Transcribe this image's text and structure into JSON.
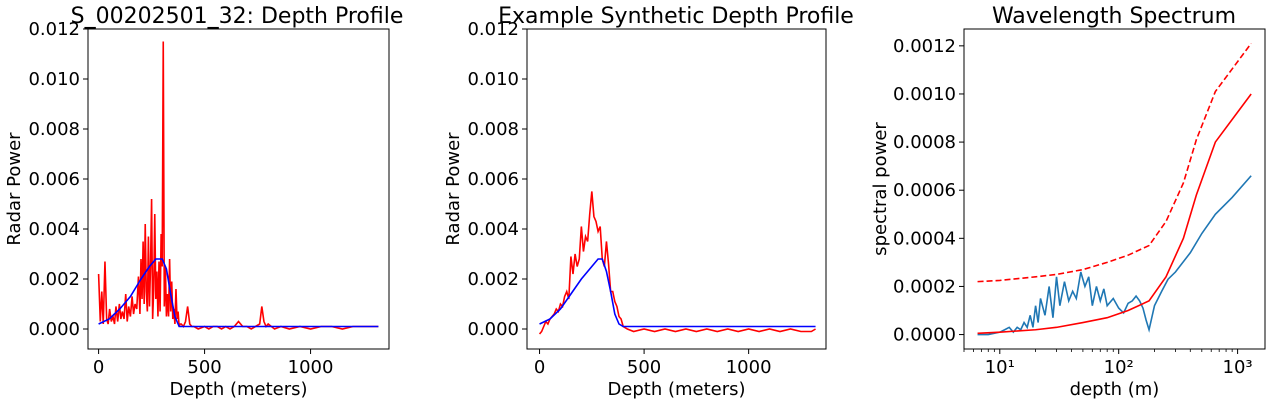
{
  "chart_data": [
    {
      "type": "line",
      "title": "S_00202501_32: Depth Profile",
      "xlabel": "Depth (meters)",
      "ylabel": "Radar Power",
      "xlim": [
        -50,
        1370
      ],
      "ylim": [
        -0.0008,
        0.012
      ],
      "xticks": [
        0,
        500,
        1000
      ],
      "xtick_labels": [
        "0",
        "500",
        "1000"
      ],
      "yticks": [
        0,
        0.002,
        0.004,
        0.006,
        0.008,
        0.01,
        0.012
      ],
      "ytick_labels": [
        "0.000",
        "0.002",
        "0.004",
        "0.006",
        "0.008",
        "0.010",
        "0.012"
      ],
      "grid": false,
      "series": [
        {
          "color": "#ff0000",
          "x": [
            0,
            8,
            15,
            22,
            30,
            38,
            45,
            52,
            60,
            68,
            75,
            82,
            90,
            98,
            105,
            112,
            120,
            128,
            135,
            142,
            150,
            158,
            165,
            172,
            180,
            188,
            195,
            200,
            205,
            210,
            215,
            220,
            225,
            230,
            235,
            240,
            245,
            250,
            255,
            260,
            265,
            270,
            275,
            280,
            285,
            290,
            295,
            300,
            305,
            310,
            315,
            320,
            325,
            330,
            335,
            340,
            345,
            350,
            355,
            360,
            365,
            370,
            375,
            380,
            385,
            390,
            400,
            410,
            420,
            430,
            440,
            450,
            470,
            500,
            520,
            540,
            560,
            580,
            600,
            620,
            640,
            660,
            680,
            700,
            720,
            740,
            760,
            770,
            780,
            790,
            800,
            830,
            860,
            900,
            950,
            1000,
            1050,
            1100,
            1150,
            1200,
            1250,
            1300,
            1320
          ],
          "y": [
            0.0022,
            0.0003,
            0.0015,
            0.0002,
            0.0027,
            0.0004,
            0.0002,
            0.0008,
            0.0003,
            0.0005,
            0.0002,
            0.0009,
            0.0003,
            0.001,
            0.0004,
            0.0007,
            0.0004,
            0.0014,
            0.0003,
            0.0009,
            0.0005,
            0.0013,
            0.0006,
            0.001,
            0.0008,
            0.0021,
            0.0006,
            0.0028,
            0.0012,
            0.0035,
            0.001,
            0.0042,
            0.0015,
            0.0007,
            0.0037,
            0.0009,
            0.0025,
            0.0052,
            0.0004,
            0.0016,
            0.0046,
            0.0012,
            0.0023,
            0.0005,
            0.0027,
            0.0007,
            0.0038,
            0.0025,
            0.0115,
            0.0009,
            0.0025,
            0.0005,
            0.0014,
            0.0005,
            0.0028,
            0.0007,
            0.0019,
            0.0004,
            0.0008,
            0.0002,
            0.0016,
            0.0004,
            0.0007,
            0.0001,
            0.0002,
            0.0002,
            0.0001,
            0.0003,
            0.0009,
            0.0002,
            0.0001,
            0.0001,
            0.0,
            0.0001,
            0.0,
            0.0001,
            0.0001,
            0.0,
            0.0001,
            0.0,
            0.0001,
            0.0003,
            0.0001,
            0.0001,
            0.0,
            0.0001,
            0.0002,
            0.0009,
            0.0003,
            0.0001,
            0.0002,
            0.0,
            0.0001,
            0.0,
            0.0001,
            0.0,
            0.0001,
            0.0001,
            0.0,
            0.0001,
            0.0001,
            0.0001,
            0.0001
          ]
        },
        {
          "color": "#0000ff",
          "x": [
            0,
            50,
            100,
            150,
            200,
            240,
            270,
            300,
            320,
            340,
            360,
            380,
            400,
            450,
            500,
            600,
            700,
            800,
            900,
            1000,
            1100,
            1200,
            1320
          ],
          "y": [
            0.0002,
            0.0004,
            0.0008,
            0.0013,
            0.002,
            0.0025,
            0.0028,
            0.0028,
            0.0024,
            0.0014,
            0.0005,
            0.0001,
            0.0001,
            0.0001,
            0.0001,
            0.0001,
            0.0001,
            0.0001,
            0.0001,
            0.0001,
            0.0001,
            0.0001,
            0.0001
          ]
        }
      ]
    },
    {
      "type": "line",
      "title": "Example Synthetic Depth Profile",
      "xlabel": "Depth (meters)",
      "ylabel": "Radar Power",
      "xlim": [
        -60,
        1370
      ],
      "ylim": [
        -0.0008,
        0.012
      ],
      "xticks": [
        0,
        500,
        1000
      ],
      "xtick_labels": [
        "0",
        "500",
        "1000"
      ],
      "yticks": [
        0,
        0.002,
        0.004,
        0.006,
        0.008,
        0.01,
        0.012
      ],
      "ytick_labels": [
        "0.000",
        "0.002",
        "0.004",
        "0.006",
        "0.008",
        "0.010",
        "0.012"
      ],
      "grid": false,
      "series": [
        {
          "color": "#ff0000",
          "x": [
            0,
            10,
            20,
            30,
            40,
            50,
            60,
            70,
            80,
            90,
            100,
            110,
            120,
            130,
            140,
            150,
            160,
            170,
            180,
            190,
            200,
            210,
            220,
            230,
            240,
            250,
            260,
            270,
            280,
            290,
            300,
            310,
            320,
            330,
            340,
            350,
            360,
            370,
            380,
            390,
            400,
            420,
            450,
            500,
            550,
            600,
            650,
            700,
            750,
            800,
            850,
            900,
            950,
            1000,
            1050,
            1100,
            1150,
            1200,
            1250,
            1300,
            1320
          ],
          "y": [
            -0.0002,
            -0.0001,
            0.0001,
            0.0003,
            0.0002,
            0.0004,
            0.0005,
            0.0006,
            0.0008,
            0.0007,
            0.001,
            0.0009,
            0.0013,
            0.0015,
            0.0012,
            0.0029,
            0.0022,
            0.003,
            0.0025,
            0.0028,
            0.0041,
            0.0031,
            0.0037,
            0.0035,
            0.0046,
            0.0055,
            0.0045,
            0.0043,
            0.0039,
            0.0041,
            0.0028,
            0.0025,
            0.0035,
            0.0026,
            0.0015,
            0.0015,
            0.0011,
            0.0009,
            0.0005,
            0.0004,
            0.0001,
            0.0,
            -0.0001,
            0.0,
            -0.0001,
            0.0,
            -0.0001,
            0.0,
            -0.0001,
            0.0,
            -0.0001,
            0.0,
            -0.0001,
            0.0,
            -0.0001,
            0.0,
            -0.0001,
            0.0,
            -0.0001,
            -0.0001,
            0.0
          ]
        },
        {
          "color": "#0000ff",
          "x": [
            0,
            50,
            100,
            150,
            200,
            250,
            280,
            300,
            320,
            340,
            360,
            380,
            400,
            450,
            500,
            600,
            700,
            800,
            900,
            1000,
            1100,
            1200,
            1320
          ],
          "y": [
            0.0002,
            0.0004,
            0.0008,
            0.0014,
            0.002,
            0.0025,
            0.0028,
            0.0028,
            0.0023,
            0.0015,
            0.0006,
            0.0002,
            0.0001,
            0.0001,
            0.0001,
            0.0001,
            0.0001,
            0.0001,
            0.0001,
            0.0001,
            0.0001,
            0.0001,
            0.0001
          ]
        }
      ]
    },
    {
      "type": "line",
      "title": "Wavelength Spectrum",
      "xlabel": "depth (m)",
      "ylabel": "spectral power",
      "xscale": "log",
      "xlim": [
        5.0,
        1700
      ],
      "ylim": [
        -6e-05,
        0.00127
      ],
      "xticks": [
        10,
        100,
        1000
      ],
      "xtick_labels": [
        "10¹",
        "10²",
        "10³"
      ],
      "yticks": [
        0,
        0.0002,
        0.0004,
        0.0006,
        0.0008,
        0.001,
        0.0012
      ],
      "ytick_labels": [
        "0.0000",
        "0.0002",
        "0.0004",
        "0.0006",
        "0.0008",
        "0.0010",
        "0.0012"
      ],
      "grid": false,
      "series": [
        {
          "color": "#1f77b4",
          "style": "solid",
          "x": [
            6.5,
            8,
            10,
            11,
            12,
            13,
            14,
            15,
            16,
            17,
            18,
            19,
            20,
            21,
            22,
            24,
            26,
            28,
            30,
            32,
            35,
            38,
            41,
            44,
            48,
            52,
            56,
            60,
            65,
            70,
            75,
            80,
            90,
            100,
            110,
            120,
            130,
            140,
            150,
            160,
            170,
            180,
            200,
            230,
            260,
            300,
            400,
            500,
            650,
            900,
            1300
          ],
          "y": [
            0.0,
            0.0,
            1e-05,
            2e-05,
            3e-05,
            1e-05,
            3e-05,
            2e-05,
            5e-05,
            3e-05,
            8e-05,
            3e-05,
            0.00012,
            5e-05,
            0.00015,
            8e-05,
            0.0002,
            7e-05,
            0.00024,
            0.00012,
            0.00022,
            0.00014,
            0.00018,
            0.00015,
            0.00026,
            0.0002,
            0.00024,
            0.00012,
            0.0002,
            0.00014,
            0.00019,
            0.00012,
            0.00015,
            0.00011,
            9e-05,
            0.00013,
            0.00014,
            0.00016,
            0.00014,
            0.00011,
            6e-05,
            2e-05,
            0.00012,
            0.00018,
            0.00023,
            0.00026,
            0.00034,
            0.00042,
            0.0005,
            0.00057,
            0.00066
          ]
        },
        {
          "color": "#ff0000",
          "style": "solid",
          "x": [
            6.5,
            10,
            20,
            30,
            50,
            80,
            120,
            180,
            250,
            350,
            450,
            650,
            1300
          ],
          "y": [
            5e-06,
            1e-05,
            2e-05,
            3e-05,
            5e-05,
            7e-05,
            0.0001,
            0.00014,
            0.00024,
            0.0004,
            0.00058,
            0.0008,
            0.001
          ]
        },
        {
          "color": "#ff0000",
          "style": "dashed",
          "x": [
            6.5,
            10,
            20,
            30,
            50,
            80,
            120,
            180,
            250,
            350,
            450,
            650,
            1300
          ],
          "y": [
            0.00022,
            0.000225,
            0.00024,
            0.00025,
            0.00027,
            0.0003,
            0.00033,
            0.00037,
            0.00047,
            0.00063,
            0.00081,
            0.00101,
            0.00121
          ]
        }
      ]
    }
  ]
}
